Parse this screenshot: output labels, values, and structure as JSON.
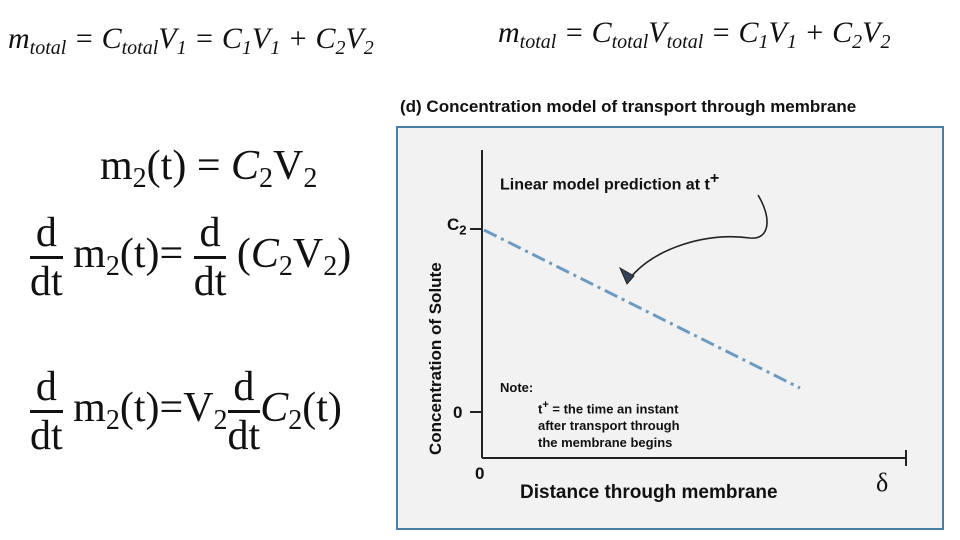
{
  "top_left_equation": {
    "m": "m",
    "total1": "total",
    "eq1": "=",
    "C": "C",
    "total2": "total",
    "V1": "V",
    "s1": "1",
    "eq2": "=",
    "C1": "C",
    "s2": "1",
    "V1b": "V",
    "s3": "1",
    "plus": "+",
    "C2": "C",
    "s4": "2",
    "V2": "V",
    "s5": "2"
  },
  "top_right_equation": {
    "m": "m",
    "total1": "total",
    "eq1": "=",
    "C": "C",
    "total2": "total",
    "V": "V",
    "total3": "total",
    "eq2": "=",
    "C1": "C",
    "s1": "1",
    "V1": "V",
    "s2": "1",
    "plus": "+",
    "C2": "C",
    "s3": "2",
    "V2": "V",
    "s4": "2"
  },
  "eq_m2": {
    "m": "m",
    "sub": "2",
    "t": "(t)",
    "eq": "=",
    "C": "C",
    "csub": "2",
    "V": "V",
    "vsub": "2"
  },
  "eq_deriv1": {
    "d": "d",
    "dt": "dt",
    "m": "m",
    "sub": "2",
    "t": "(t)",
    "eq": "=",
    "d2": "d",
    "dt2": "dt",
    "open": "(",
    "C": "C",
    "csub": "2",
    "V": "V",
    "vsub": "2",
    "close": ")"
  },
  "eq_deriv2": {
    "d": "d",
    "dt": "dt",
    "m": "m",
    "sub": "2",
    "t": "(t)",
    "eq": "=",
    "V": "V",
    "vsub": "2",
    "d2": "d",
    "dt2": "dt",
    "C": "C",
    "csub": "2",
    "t2": "(t)"
  },
  "panel": {
    "title": "(d) Concentration model of transport through membrane",
    "y_axis_label": "Concentration of Solute",
    "x_axis_label": "Distance through membrane",
    "y_tick_top_base": "C",
    "y_tick_top_sub": "2",
    "y_tick_zero": "0",
    "x_tick_zero": "0",
    "x_tick_end": "δ",
    "annotation": "Linear model prediction at t",
    "annotation_sup": "+",
    "note_title": "Note:",
    "note_t": "t",
    "note_sup": "+",
    "note_line1": " = the time an instant",
    "note_line2": "after transport through",
    "note_line3": "the membrane begins"
  },
  "colors": {
    "panel_border": "#4a7fa7",
    "line": "#6b9bc3",
    "marker": "#33445a"
  }
}
